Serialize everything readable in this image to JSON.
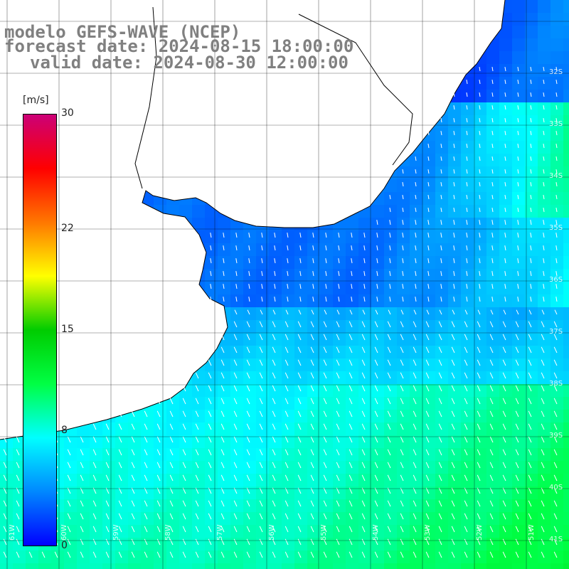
{
  "title": {
    "line1": "modelo GEFS-WAVE (NCEP)",
    "line2": "forecast date: 2024-08-15 18:00:00",
    "line3": "valid date: 2024-08-30 12:00:00"
  },
  "colorbar": {
    "unit": "[m/s]",
    "ticks": [
      {
        "label": "30",
        "value": 30
      },
      {
        "label": "22",
        "value": 22
      },
      {
        "label": "15",
        "value": 15
      },
      {
        "label": "8",
        "value": 8
      },
      {
        "label": "0",
        "value": 0
      }
    ],
    "range": [
      0,
      30
    ],
    "stops": [
      "#0000ff",
      "#0088ff",
      "#00ffff",
      "#00ff44",
      "#00cc00",
      "#ffff00",
      "#ff7700",
      "#ff0000",
      "#cc0077"
    ]
  },
  "lat_labels": [
    "32S",
    "33S",
    "34S",
    "35S",
    "36S",
    "37S",
    "38S",
    "39S",
    "40S",
    "41S"
  ],
  "lon_labels": [
    "61W",
    "60W",
    "59W",
    "58W",
    "57W",
    "56W",
    "55W",
    "54W",
    "53W",
    "52W",
    "51W"
  ],
  "colors": {
    "land": "#ffffff",
    "coast": "#000000",
    "grid": "#000000",
    "arrow": "#ffffff",
    "title": "#808080"
  }
}
